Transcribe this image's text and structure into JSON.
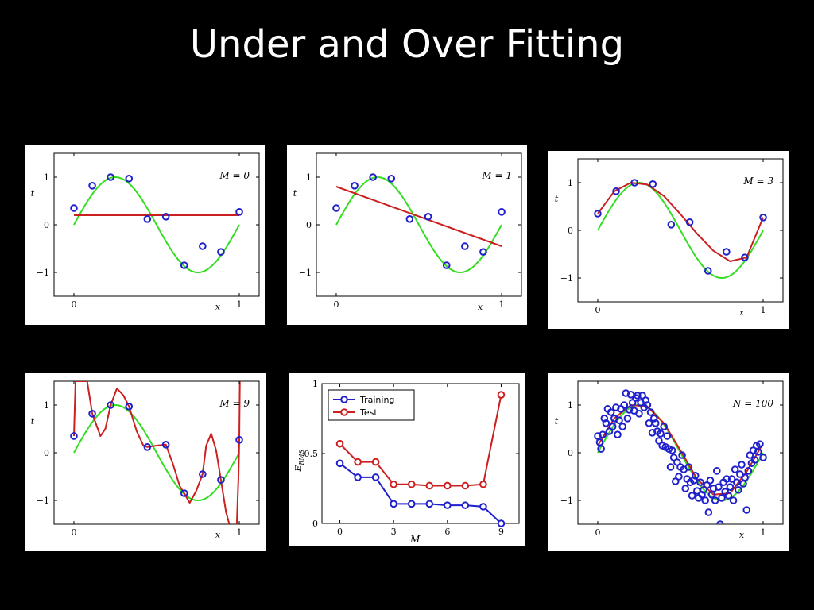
{
  "slide": {
    "title": "Under and Over Fitting"
  },
  "colors": {
    "background": "#000000",
    "true_curve": "#33dd22",
    "fit_curve": "#cc1f1f",
    "points": "#1f1fcc",
    "test": "#cc1f1f",
    "training": "#1f1fcc"
  },
  "chart_data": [
    {
      "type": "line",
      "label": "M = 0",
      "xlabel": "x",
      "ylabel": "t",
      "xlim": [
        0,
        1
      ],
      "ylim": [
        -1.5,
        1.5
      ],
      "x_ticks": [
        "0",
        "1"
      ],
      "y_ticks": [
        "1",
        "0",
        "−1"
      ],
      "grid": false,
      "points": [
        [
          0,
          0.35
        ],
        [
          0.111,
          0.82
        ],
        [
          0.222,
          1.0
        ],
        [
          0.333,
          0.97
        ],
        [
          0.444,
          0.12
        ],
        [
          0.556,
          0.17
        ],
        [
          0.667,
          -0.85
        ],
        [
          0.778,
          -0.45
        ],
        [
          0.889,
          -0.57
        ],
        [
          1.0,
          0.27
        ]
      ],
      "fit": [
        [
          0,
          0.2
        ],
        [
          1,
          0.2
        ]
      ]
    },
    {
      "type": "line",
      "label": "M = 1",
      "xlabel": "x",
      "ylabel": "t",
      "xlim": [
        0,
        1
      ],
      "ylim": [
        -1.5,
        1.5
      ],
      "x_ticks": [
        "0",
        "1"
      ],
      "y_ticks": [
        "1",
        "0",
        "−1"
      ],
      "grid": false,
      "points": [
        [
          0,
          0.35
        ],
        [
          0.111,
          0.82
        ],
        [
          0.222,
          1.0
        ],
        [
          0.333,
          0.97
        ],
        [
          0.444,
          0.12
        ],
        [
          0.556,
          0.17
        ],
        [
          0.667,
          -0.85
        ],
        [
          0.778,
          -0.45
        ],
        [
          0.889,
          -0.57
        ],
        [
          1.0,
          0.27
        ]
      ],
      "fit": [
        [
          0,
          0.8
        ],
        [
          1,
          -0.45
        ]
      ]
    },
    {
      "type": "line",
      "label": "M = 3",
      "xlabel": "x",
      "ylabel": "t",
      "xlim": [
        0,
        1
      ],
      "ylim": [
        -1.5,
        1.5
      ],
      "x_ticks": [
        "0",
        "1"
      ],
      "y_ticks": [
        "1",
        "0",
        "−1"
      ],
      "grid": false,
      "points": [
        [
          0,
          0.35
        ],
        [
          0.111,
          0.82
        ],
        [
          0.222,
          1.0
        ],
        [
          0.333,
          0.97
        ],
        [
          0.444,
          0.12
        ],
        [
          0.556,
          0.17
        ],
        [
          0.667,
          -0.85
        ],
        [
          0.778,
          -0.45
        ],
        [
          0.889,
          -0.57
        ],
        [
          1.0,
          0.27
        ]
      ],
      "fit": [
        [
          0,
          0.35
        ],
        [
          0.1,
          0.82
        ],
        [
          0.2,
          1.0
        ],
        [
          0.3,
          0.96
        ],
        [
          0.4,
          0.72
        ],
        [
          0.5,
          0.34
        ],
        [
          0.6,
          -0.07
        ],
        [
          0.7,
          -0.43
        ],
        [
          0.8,
          -0.65
        ],
        [
          0.9,
          -0.57
        ],
        [
          1.0,
          0.27
        ]
      ]
    },
    {
      "type": "line",
      "label": "M = 9",
      "xlabel": "x",
      "ylabel": "t",
      "xlim": [
        0,
        1
      ],
      "ylim": [
        -1.5,
        1.5
      ],
      "x_ticks": [
        "0",
        "1"
      ],
      "y_ticks": [
        "1",
        "0",
        "−1"
      ],
      "grid": false,
      "points": [
        [
          0,
          0.35
        ],
        [
          0.111,
          0.82
        ],
        [
          0.222,
          1.0
        ],
        [
          0.333,
          0.97
        ],
        [
          0.444,
          0.12
        ],
        [
          0.556,
          0.17
        ],
        [
          0.667,
          -0.85
        ],
        [
          0.778,
          -0.45
        ],
        [
          0.889,
          -0.57
        ],
        [
          1.0,
          0.27
        ]
      ],
      "fit": [
        [
          0,
          0.35
        ],
        [
          0.01,
          1.5
        ],
        [
          0.08,
          1.5
        ],
        [
          0.111,
          0.82
        ],
        [
          0.16,
          0.35
        ],
        [
          0.19,
          0.5
        ],
        [
          0.222,
          1.0
        ],
        [
          0.26,
          1.35
        ],
        [
          0.3,
          1.2
        ],
        [
          0.333,
          0.97
        ],
        [
          0.38,
          0.45
        ],
        [
          0.42,
          0.15
        ],
        [
          0.444,
          0.12
        ],
        [
          0.5,
          0.15
        ],
        [
          0.556,
          0.17
        ],
        [
          0.6,
          -0.25
        ],
        [
          0.64,
          -0.7
        ],
        [
          0.667,
          -0.85
        ],
        [
          0.7,
          -1.05
        ],
        [
          0.74,
          -0.8
        ],
        [
          0.778,
          -0.45
        ],
        [
          0.8,
          0.15
        ],
        [
          0.83,
          0.4
        ],
        [
          0.86,
          0.05
        ],
        [
          0.889,
          -0.57
        ],
        [
          0.92,
          -1.25
        ],
        [
          0.94,
          -1.5
        ]
      ],
      "fit_end": [
        [
          0.985,
          -1.5
        ],
        [
          0.995,
          -0.5
        ],
        [
          1.0,
          0.27
        ],
        [
          1.003,
          1.5
        ]
      ]
    },
    {
      "type": "line",
      "xlabel": "M",
      "ylabel": "E_RMS",
      "xlim": [
        -1,
        10
      ],
      "ylim": [
        0,
        1
      ],
      "x_ticks": [
        "0",
        "3",
        "6",
        "9"
      ],
      "y_ticks": [
        "0",
        "0.5",
        "1"
      ],
      "legend": "top-left",
      "grid": false,
      "categories": [
        0,
        1,
        2,
        3,
        4,
        5,
        6,
        7,
        8,
        9
      ],
      "series": [
        {
          "name": "Training",
          "values": [
            0.43,
            0.33,
            0.33,
            0.14,
            0.14,
            0.14,
            0.13,
            0.13,
            0.12,
            0.0
          ]
        },
        {
          "name": "Test",
          "values": [
            0.57,
            0.44,
            0.44,
            0.28,
            0.28,
            0.27,
            0.27,
            0.27,
            0.28,
            0.92
          ]
        }
      ]
    },
    {
      "type": "scatter",
      "label": "N = 100",
      "xlabel": "x",
      "ylabel": "t",
      "xlim": [
        0,
        1
      ],
      "ylim": [
        -1.5,
        1.5
      ],
      "x_ticks": [
        "0",
        "1"
      ],
      "y_ticks": [
        "1",
        "0",
        "−1"
      ],
      "grid": false,
      "points": [
        [
          0.0,
          0.35
        ],
        [
          0.012,
          0.22
        ],
        [
          0.02,
          0.08
        ],
        [
          0.03,
          0.38
        ],
        [
          0.04,
          0.72
        ],
        [
          0.05,
          0.62
        ],
        [
          0.06,
          0.92
        ],
        [
          0.07,
          0.45
        ],
        [
          0.08,
          0.85
        ],
        [
          0.09,
          0.55
        ],
        [
          0.1,
          0.72
        ],
        [
          0.11,
          0.95
        ],
        [
          0.12,
          0.38
        ],
        [
          0.13,
          0.68
        ],
        [
          0.14,
          0.92
        ],
        [
          0.15,
          0.55
        ],
        [
          0.16,
          1.0
        ],
        [
          0.17,
          1.25
        ],
        [
          0.18,
          0.72
        ],
        [
          0.19,
          0.9
        ],
        [
          0.2,
          1.22
        ],
        [
          0.21,
          1.05
        ],
        [
          0.22,
          0.88
        ],
        [
          0.23,
          1.15
        ],
        [
          0.24,
          1.2
        ],
        [
          0.25,
          0.82
        ],
        [
          0.26,
          1.05
        ],
        [
          0.27,
          1.2
        ],
        [
          0.28,
          0.95
        ],
        [
          0.29,
          1.1
        ],
        [
          0.3,
          1.0
        ],
        [
          0.31,
          0.62
        ],
        [
          0.32,
          0.85
        ],
        [
          0.33,
          0.42
        ],
        [
          0.34,
          0.72
        ],
        [
          0.35,
          0.62
        ],
        [
          0.36,
          0.45
        ],
        [
          0.37,
          0.25
        ],
        [
          0.38,
          0.4
        ],
        [
          0.39,
          0.15
        ],
        [
          0.4,
          0.55
        ],
        [
          0.41,
          0.12
        ],
        [
          0.42,
          0.35
        ],
        [
          0.43,
          0.08
        ],
        [
          0.44,
          -0.3
        ],
        [
          0.45,
          0.05
        ],
        [
          0.46,
          -0.1
        ],
        [
          0.47,
          -0.6
        ],
        [
          0.48,
          -0.2
        ],
        [
          0.49,
          -0.5
        ],
        [
          0.5,
          -0.3
        ],
        [
          0.51,
          -0.05
        ],
        [
          0.52,
          -0.35
        ],
        [
          0.53,
          -0.75
        ],
        [
          0.54,
          -0.55
        ],
        [
          0.55,
          -0.3
        ],
        [
          0.56,
          -0.62
        ],
        [
          0.57,
          -0.9
        ],
        [
          0.58,
          -0.58
        ],
        [
          0.59,
          -0.48
        ],
        [
          0.6,
          -0.8
        ],
        [
          0.61,
          -0.95
        ],
        [
          0.62,
          -0.62
        ],
        [
          0.63,
          -0.88
        ],
        [
          0.64,
          -0.78
        ],
        [
          0.65,
          -1.0
        ],
        [
          0.66,
          -0.68
        ],
        [
          0.67,
          -1.25
        ],
        [
          0.68,
          -0.58
        ],
        [
          0.69,
          -0.88
        ],
        [
          0.7,
          -0.75
        ],
        [
          0.71,
          -1.0
        ],
        [
          0.72,
          -0.38
        ],
        [
          0.73,
          -0.72
        ],
        [
          0.74,
          -1.5
        ],
        [
          0.75,
          -0.95
        ],
        [
          0.76,
          -0.62
        ],
        [
          0.77,
          -0.82
        ],
        [
          0.78,
          -0.55
        ],
        [
          0.79,
          -0.9
        ],
        [
          0.8,
          -0.72
        ],
        [
          0.81,
          -0.55
        ],
        [
          0.82,
          -1.0
        ],
        [
          0.83,
          -0.35
        ],
        [
          0.84,
          -0.62
        ],
        [
          0.85,
          -0.78
        ],
        [
          0.86,
          -0.45
        ],
        [
          0.87,
          -0.25
        ],
        [
          0.88,
          -0.65
        ],
        [
          0.89,
          -0.52
        ],
        [
          0.9,
          -1.2
        ],
        [
          0.91,
          -0.38
        ],
        [
          0.92,
          -0.05
        ],
        [
          0.93,
          -0.22
        ],
        [
          0.94,
          0.05
        ],
        [
          0.95,
          -0.15
        ],
        [
          0.96,
          0.15
        ],
        [
          0.97,
          0.02
        ],
        [
          0.98,
          0.18
        ],
        [
          1.0,
          -0.1
        ]
      ],
      "fit": [
        [
          0,
          0.15
        ],
        [
          0.1,
          0.72
        ],
        [
          0.2,
          1.0
        ],
        [
          0.3,
          0.97
        ],
        [
          0.4,
          0.62
        ],
        [
          0.5,
          0.05
        ],
        [
          0.6,
          -0.55
        ],
        [
          0.7,
          -0.88
        ],
        [
          0.8,
          -0.85
        ],
        [
          0.9,
          -0.4
        ],
        [
          1.0,
          0.2
        ]
      ]
    }
  ],
  "legend": {
    "training": "Training",
    "test": "Test"
  }
}
